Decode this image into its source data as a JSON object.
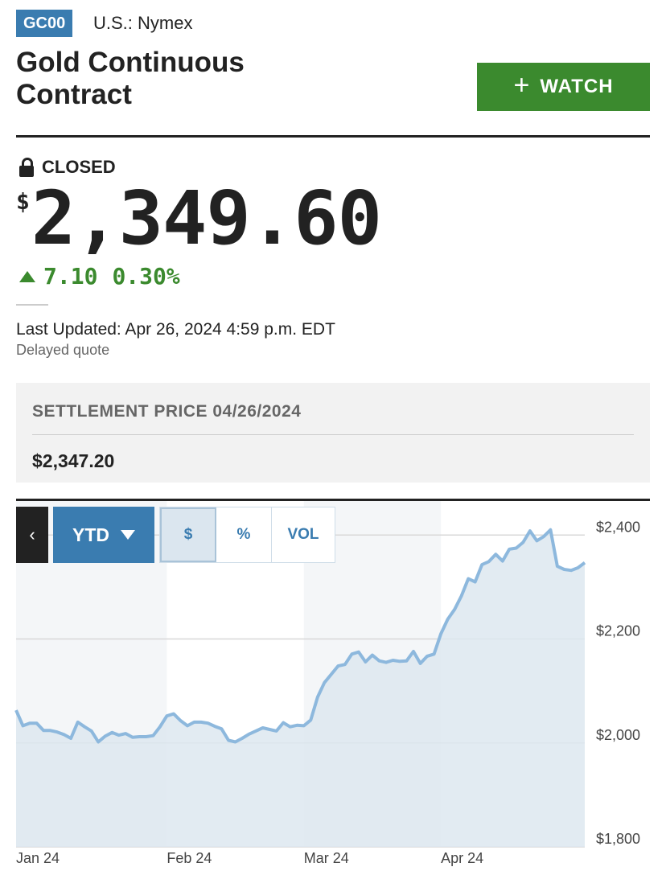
{
  "header": {
    "ticker": "GC00",
    "exchange": "U.S.: Nymex",
    "title": "Gold Continuous Contract",
    "watch_label": "WATCH"
  },
  "quote": {
    "status": "CLOSED",
    "currency_symbol": "$",
    "price": "2,349.60",
    "change": "7.10",
    "change_pct": "0.30%",
    "direction": "up",
    "last_updated": "Last Updated: Apr 26, 2024 4:59 p.m. EDT",
    "delayed": "Delayed quote"
  },
  "settlement": {
    "label": "SETTLEMENT PRICE 04/26/2024",
    "value": "$2,347.20"
  },
  "chart_controls": {
    "back": "‹",
    "range": "YTD",
    "modes": [
      "$",
      "%",
      "VOL"
    ],
    "active_mode": "$"
  },
  "colors": {
    "accent": "#3a7cb0",
    "watch_green": "#3b8a2e",
    "line": "#8db8dd",
    "fill": "#dde7f0"
  },
  "chart_data": {
    "type": "area",
    "ylim": [
      1800,
      2450
    ],
    "yticks": [
      {
        "value": 2400,
        "label": "$2,400"
      },
      {
        "value": 2200,
        "label": "$2,200"
      },
      {
        "value": 2000,
        "label": "$2,000"
      },
      {
        "value": 1800,
        "label": "$1,800"
      }
    ],
    "xticks": [
      {
        "index": 0,
        "label": "Jan 24"
      },
      {
        "index": 22,
        "label": "Feb 24"
      },
      {
        "index": 42,
        "label": "Mar 24"
      },
      {
        "index": 62,
        "label": "Apr 24"
      }
    ],
    "grid": true,
    "values": [
      2063,
      2033,
      2038,
      2038,
      2024,
      2024,
      2021,
      2016,
      2009,
      2040,
      2031,
      2023,
      2002,
      2013,
      2020,
      2015,
      2018,
      2011,
      2012,
      2012,
      2014,
      2031,
      2052,
      2056,
      2043,
      2033,
      2040,
      2040,
      2038,
      2032,
      2027,
      2005,
      2002,
      2009,
      2017,
      2023,
      2029,
      2026,
      2023,
      2039,
      2031,
      2034,
      2033,
      2044,
      2088,
      2116,
      2132,
      2148,
      2151,
      2171,
      2175,
      2156,
      2169,
      2158,
      2155,
      2159,
      2157,
      2158,
      2176,
      2153,
      2167,
      2171,
      2210,
      2238,
      2257,
      2283,
      2316,
      2310,
      2343,
      2349,
      2363,
      2350,
      2373,
      2375,
      2386,
      2408,
      2389,
      2397,
      2410,
      2340,
      2334,
      2332,
      2337,
      2347
    ]
  }
}
